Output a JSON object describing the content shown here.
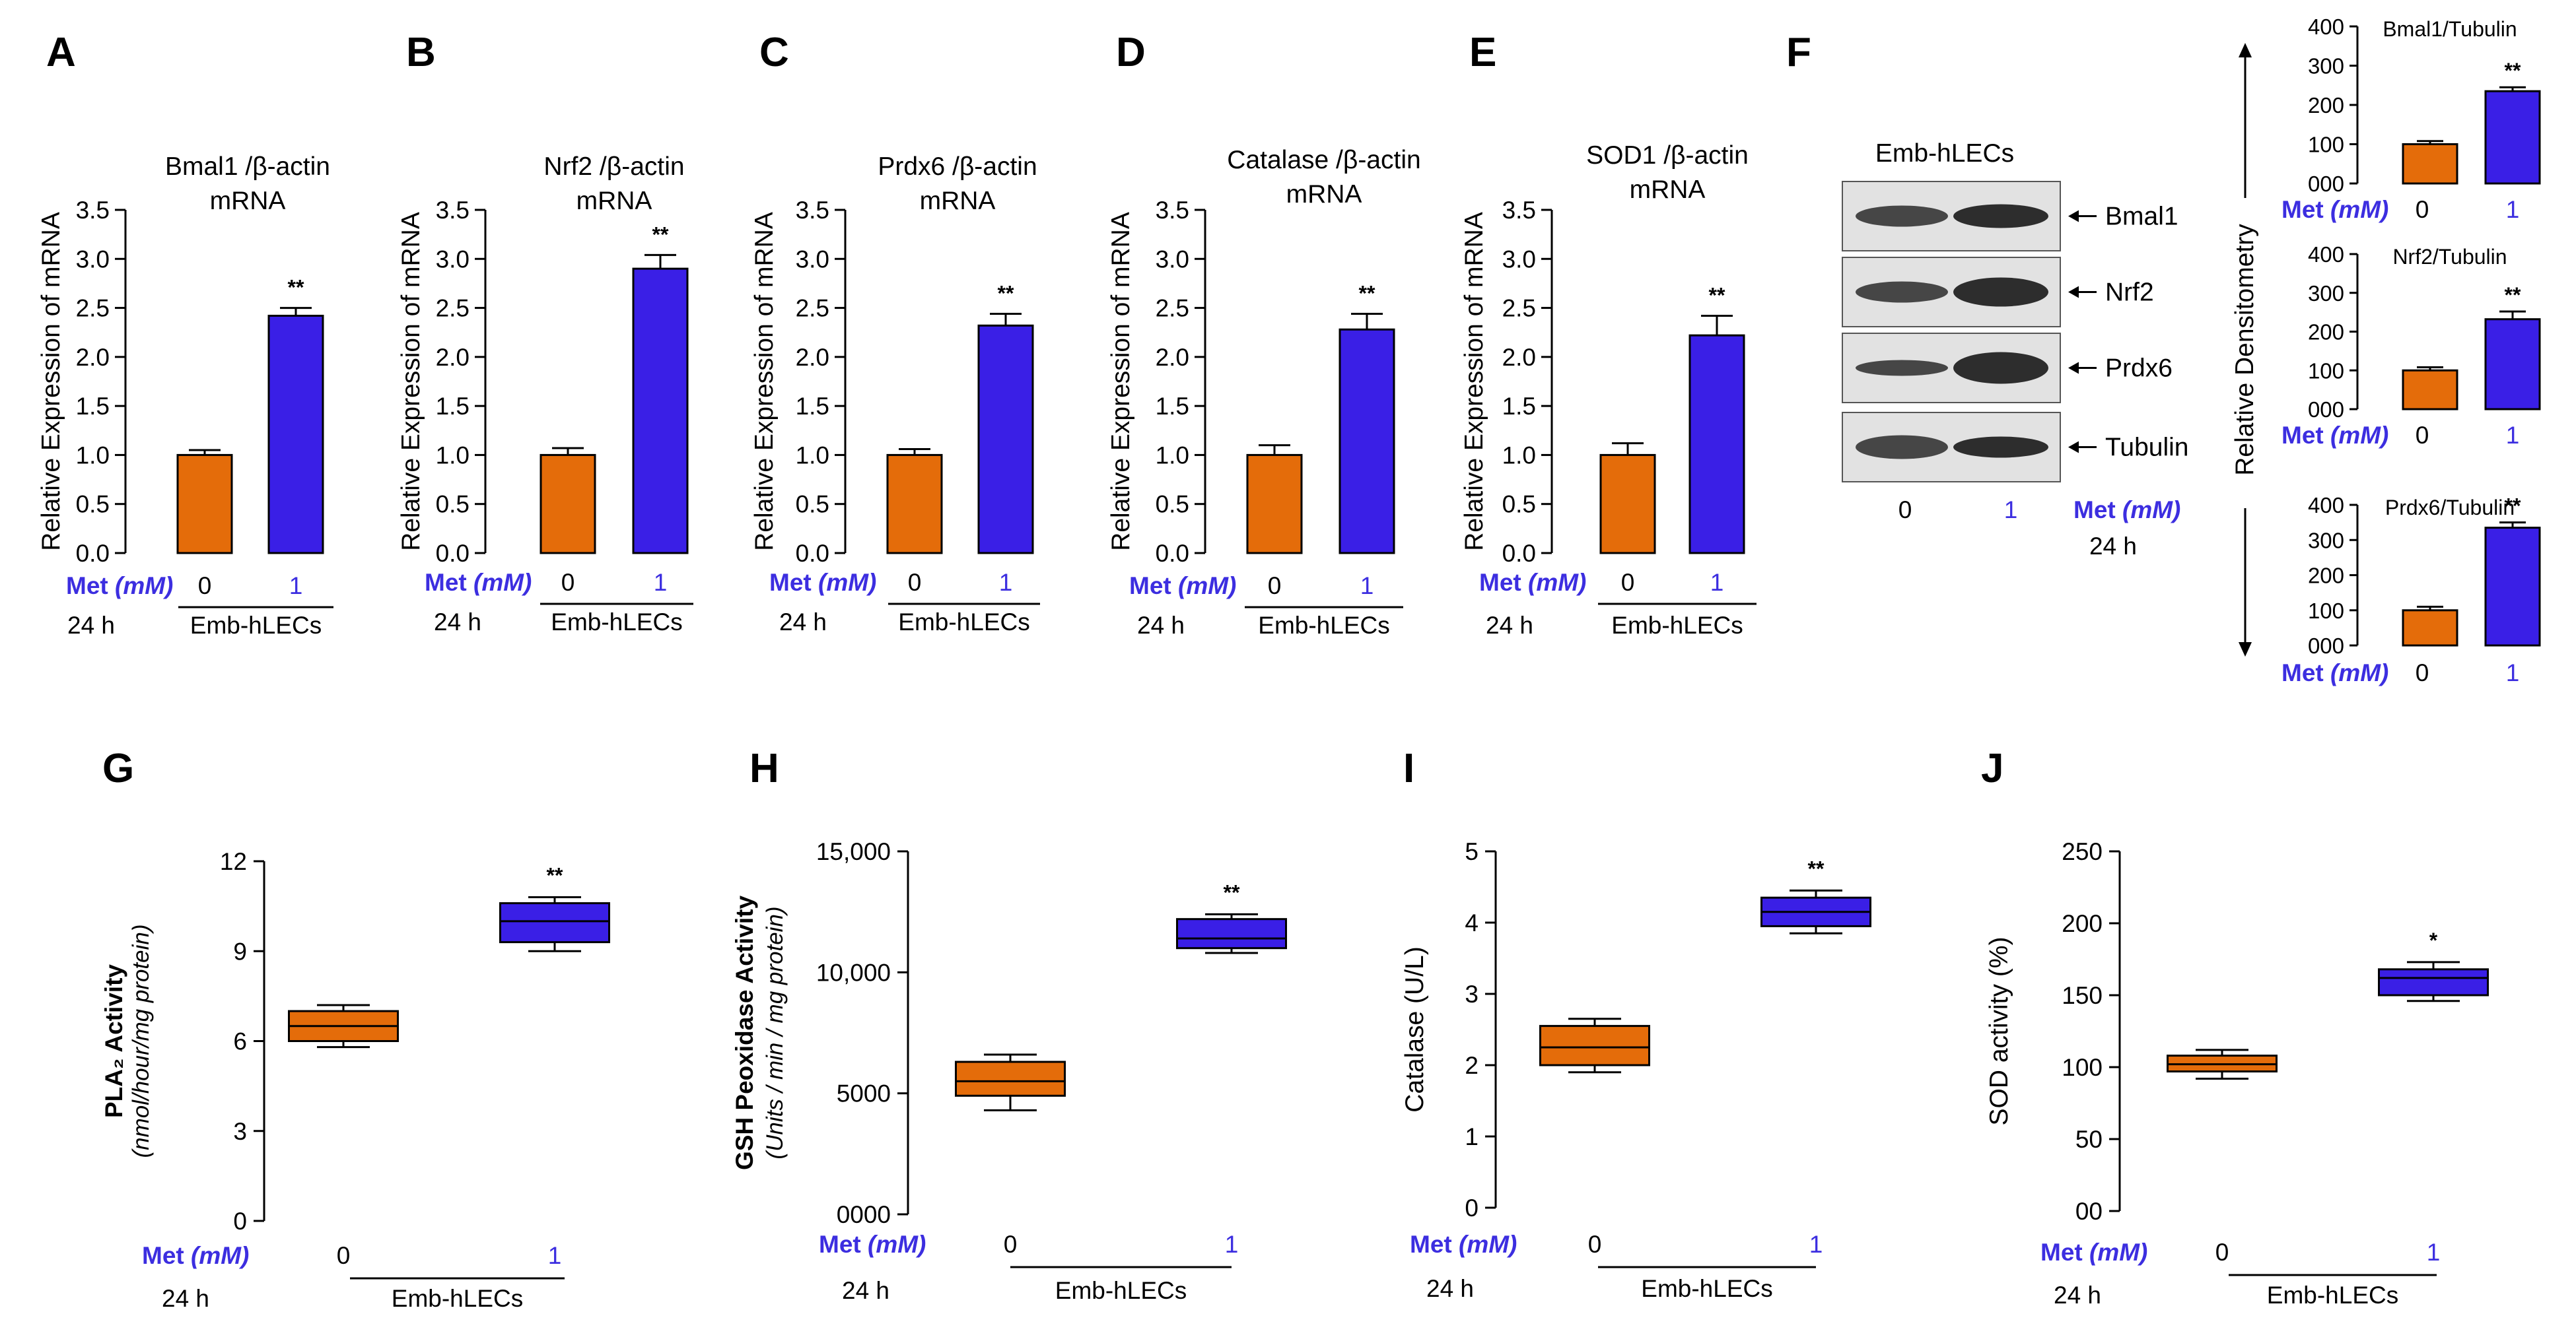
{
  "colors": {
    "control": "#e46c0a",
    "treated": "#3a1fe6",
    "met_text": "#3c2ee0"
  },
  "common": {
    "met_label": "Met",
    "met_unit": "(mM)",
    "x_control": "0",
    "x_treated": "1",
    "time": "24 h",
    "group": "Emb-hLECs",
    "significance": "**"
  },
  "chart_data": [
    {
      "panel": "A",
      "type": "bar",
      "title_line1": "Bmal1 /β-actin",
      "title_line2": "mRNA",
      "ylabel": "Relative Expression of mRNA",
      "ylim": [
        0,
        3.5
      ],
      "yticks": [
        "0.0",
        "0.5",
        "1.0",
        "1.5",
        "2.0",
        "2.5",
        "3.0",
        "3.5"
      ],
      "categories": [
        "0",
        "1"
      ],
      "values": [
        1.0,
        2.42
      ],
      "errors": [
        0.05,
        0.08
      ],
      "significance": "**"
    },
    {
      "panel": "B",
      "type": "bar",
      "title_line1": "Nrf2 /β-actin",
      "title_line2": "mRNA",
      "ylabel": "Relative Expression of mRNA",
      "ylim": [
        0,
        3.5
      ],
      "yticks": [
        "0.0",
        "0.5",
        "1.0",
        "1.5",
        "2.0",
        "2.5",
        "3.0",
        "3.5"
      ],
      "categories": [
        "0",
        "1"
      ],
      "values": [
        1.0,
        2.9
      ],
      "errors": [
        0.07,
        0.14
      ],
      "significance": "**"
    },
    {
      "panel": "C",
      "type": "bar",
      "title_line1": "Prdx6 /β-actin",
      "title_line2": "mRNA",
      "ylabel": "Relative Expression of mRNA",
      "ylim": [
        0,
        3.5
      ],
      "yticks": [
        "0.0",
        "0.5",
        "1.0",
        "1.5",
        "2.0",
        "2.5",
        "3.0",
        "3.5"
      ],
      "categories": [
        "0",
        "1"
      ],
      "values": [
        1.0,
        2.32
      ],
      "errors": [
        0.06,
        0.12
      ],
      "significance": "**"
    },
    {
      "panel": "D",
      "type": "bar",
      "title_line1": "Catalase /β-actin",
      "title_line2": "mRNA",
      "ylabel": "Relative Expression of mRNA",
      "ylim": [
        0,
        3.5
      ],
      "yticks": [
        "0.0",
        "0.5",
        "1.0",
        "1.5",
        "2.0",
        "2.5",
        "3.0",
        "3.5"
      ],
      "categories": [
        "0",
        "1"
      ],
      "values": [
        1.0,
        2.28
      ],
      "errors": [
        0.1,
        0.16
      ],
      "significance": "**"
    },
    {
      "panel": "E",
      "type": "bar",
      "title_line1": "SOD1 /β-actin",
      "title_line2": "mRNA",
      "ylabel": "Relative Expression of mRNA",
      "ylim": [
        0,
        3.5
      ],
      "yticks": [
        "0.0",
        "0.5",
        "1.0",
        "1.5",
        "2.0",
        "2.5",
        "3.0",
        "3.5"
      ],
      "categories": [
        "0",
        "1"
      ],
      "values": [
        1.0,
        2.22
      ],
      "errors": [
        0.12,
        0.2
      ],
      "significance": "**"
    },
    {
      "panel": "F",
      "type": "western-blot",
      "cell_line": "Emb-hLECs",
      "bands": [
        "Bmal1",
        "Nrf2",
        "Prdx6",
        "Tubulin"
      ],
      "lanes": [
        "0",
        "1"
      ],
      "treatment_label": "Met",
      "treatment_unit": "(mM)",
      "time": "24 h",
      "side_label": "Relative Densitometry"
    },
    {
      "panel": "F1",
      "type": "bar",
      "title": "Bmal1/Tubulin",
      "ylim": [
        0,
        400
      ],
      "yticks": [
        "000",
        "100",
        "200",
        "300",
        "400"
      ],
      "categories": [
        "0",
        "1"
      ],
      "values": [
        100,
        235
      ],
      "errors": [
        8,
        10
      ],
      "significance": "**"
    },
    {
      "panel": "F2",
      "type": "bar",
      "title": "Nrf2/Tubulin",
      "ylim": [
        0,
        400
      ],
      "yticks": [
        "000",
        "100",
        "200",
        "300",
        "400"
      ],
      "categories": [
        "0",
        "1"
      ],
      "values": [
        100,
        232
      ],
      "errors": [
        8,
        20
      ],
      "significance": "**"
    },
    {
      "panel": "F3",
      "type": "bar",
      "title": "Prdx6/Tubulin",
      "ylim": [
        0,
        400
      ],
      "yticks": [
        "000",
        "100",
        "200",
        "300",
        "400"
      ],
      "categories": [
        "0",
        "1"
      ],
      "values": [
        100,
        335
      ],
      "errors": [
        10,
        15
      ],
      "significance": "**"
    },
    {
      "panel": "G",
      "type": "box",
      "ylabel_bold": "PLA₂ Activity",
      "ylabel_italic": "(nmol/hour/mg protein)",
      "ylim": [
        0,
        12
      ],
      "yticks": [
        "0",
        "3",
        "6",
        "9",
        "12"
      ],
      "ytick_values": [
        0,
        3,
        6,
        9,
        12
      ],
      "categories": [
        "0",
        "1"
      ],
      "boxes": [
        {
          "min": 5.8,
          "q1": 6.0,
          "median": 6.5,
          "q3": 7.0,
          "max": 7.2
        },
        {
          "min": 9.0,
          "q1": 9.3,
          "median": 10.0,
          "q3": 10.6,
          "max": 10.8
        }
      ],
      "significance": "**"
    },
    {
      "panel": "H",
      "type": "box",
      "ylabel_bold": "GSH Peoxidase Activity",
      "ylabel_italic": "(Units / min / mg protein)",
      "ylim": [
        0,
        15000
      ],
      "yticks": [
        "0000",
        "5000",
        "10,000",
        "15,000"
      ],
      "ytick_values": [
        0,
        5000,
        10000,
        15000
      ],
      "categories": [
        "0",
        "1"
      ],
      "boxes": [
        {
          "min": 4300,
          "q1": 4900,
          "median": 5500,
          "q3": 6300,
          "max": 6600
        },
        {
          "min": 10800,
          "q1": 11000,
          "median": 11400,
          "q3": 12200,
          "max": 12400
        }
      ],
      "significance": "**"
    },
    {
      "panel": "I",
      "type": "box",
      "ylabel": "Catalase (U/L)",
      "ylim": [
        0,
        5
      ],
      "yticks": [
        "0",
        "1",
        "2",
        "3",
        "4",
        "5"
      ],
      "ytick_values": [
        0,
        1,
        2,
        3,
        4,
        5
      ],
      "categories": [
        "0",
        "1"
      ],
      "boxes": [
        {
          "min": 1.9,
          "q1": 2.0,
          "median": 2.25,
          "q3": 2.55,
          "max": 2.65
        },
        {
          "min": 3.85,
          "q1": 3.95,
          "median": 4.15,
          "q3": 4.35,
          "max": 4.45
        }
      ],
      "significance": "**"
    },
    {
      "panel": "J",
      "type": "box",
      "ylabel": "SOD activity (%)",
      "ylim": [
        0,
        250
      ],
      "yticks": [
        "00",
        "50",
        "100",
        "150",
        "200",
        "250"
      ],
      "ytick_values": [
        0,
        50,
        100,
        150,
        200,
        250
      ],
      "categories": [
        "0",
        "1"
      ],
      "boxes": [
        {
          "min": 92,
          "q1": 97,
          "median": 102,
          "q3": 108,
          "max": 112
        },
        {
          "min": 146,
          "q1": 150,
          "median": 162,
          "q3": 168,
          "max": 173
        }
      ],
      "significance": "*"
    }
  ]
}
